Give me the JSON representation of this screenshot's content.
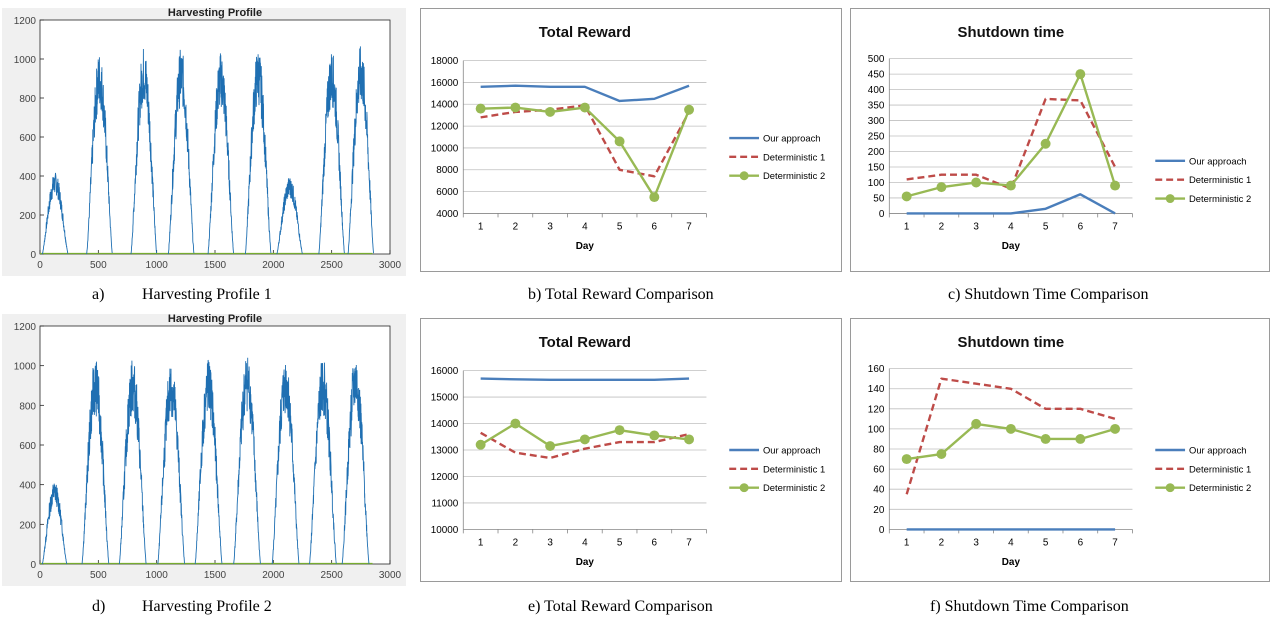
{
  "colors": {
    "harvest": "#1f6fb2",
    "ours": "#4a7ebb",
    "det1": "#be4b48",
    "det2": "#98b954",
    "grid": "#bfbfbf",
    "axis": "#868686"
  },
  "captions": {
    "a": {
      "letter": "a)",
      "text": "Harvesting Profile 1"
    },
    "b": {
      "text": "b) Total Reward Comparison"
    },
    "c": {
      "text": "c) Shutdown Time Comparison"
    },
    "d": {
      "letter": "d)",
      "text": "Harvesting Profile 2"
    },
    "e": {
      "text": "e) Total Reward Comparison"
    },
    "f": {
      "text": "f) Shutdown Time Comparison"
    }
  },
  "chart_data": [
    {
      "id": "a",
      "type": "line",
      "title": "Harvesting Profile",
      "xlim": [
        0,
        3000
      ],
      "ylim": [
        0,
        1200
      ],
      "xticks": [
        0,
        500,
        1000,
        1500,
        2000,
        2500,
        3000
      ],
      "yticks": [
        0,
        200,
        400,
        600,
        800,
        1000,
        1200
      ],
      "grid": false,
      "day_length": 150,
      "peaks": [
        {
          "start": 20,
          "end": 240,
          "peak": 420
        },
        {
          "start": 400,
          "end": 620,
          "peak": 1040
        },
        {
          "start": 780,
          "end": 1000,
          "peak": 1070
        },
        {
          "start": 1100,
          "end": 1320,
          "peak": 1060
        },
        {
          "start": 1440,
          "end": 1660,
          "peak": 1040
        },
        {
          "start": 1760,
          "end": 1980,
          "peak": 1060
        },
        {
          "start": 2030,
          "end": 2250,
          "peak": 400
        },
        {
          "start": 2390,
          "end": 2610,
          "peak": 1050
        },
        {
          "start": 2640,
          "end": 2860,
          "peak": 1070
        }
      ]
    },
    {
      "id": "b",
      "type": "line",
      "title": "Total Reward",
      "xlabel": "Day",
      "categories": [
        "1",
        "2",
        "3",
        "4",
        "5",
        "6",
        "7"
      ],
      "ylim": [
        4000,
        18000
      ],
      "yticks": [
        4000,
        6000,
        8000,
        10000,
        12000,
        14000,
        16000,
        18000
      ],
      "legend": "right",
      "series": [
        {
          "name": "Our approach",
          "style": "solid",
          "values": [
            15600,
            15700,
            15600,
            15600,
            14300,
            14500,
            15700
          ]
        },
        {
          "name": "Deterministic 1",
          "style": "dashed",
          "values": [
            12800,
            13300,
            13500,
            13900,
            8000,
            7400,
            13300
          ]
        },
        {
          "name": "Deterministic 2",
          "style": "marker",
          "values": [
            13600,
            13700,
            13300,
            13700,
            10600,
            5500,
            13500
          ]
        }
      ]
    },
    {
      "id": "c",
      "type": "line",
      "title": "Shutdown time",
      "xlabel": "Day",
      "categories": [
        "1",
        "2",
        "3",
        "4",
        "5",
        "6",
        "7"
      ],
      "ylim": [
        0,
        500
      ],
      "yticks": [
        0,
        50,
        100,
        150,
        200,
        250,
        300,
        350,
        400,
        450,
        500
      ],
      "legend": "right",
      "series": [
        {
          "name": "Our approach",
          "style": "solid",
          "values": [
            0,
            0,
            0,
            0,
            15,
            62,
            0
          ]
        },
        {
          "name": "Deterministic 1",
          "style": "dashed",
          "values": [
            110,
            125,
            125,
            80,
            370,
            365,
            150
          ]
        },
        {
          "name": "Deterministic 2",
          "style": "marker",
          "values": [
            55,
            85,
            100,
            90,
            225,
            450,
            90
          ]
        }
      ]
    },
    {
      "id": "d",
      "type": "line",
      "title": "Harvesting Profile",
      "xlim": [
        0,
        3000
      ],
      "ylim": [
        0,
        1200
      ],
      "xticks": [
        0,
        500,
        1000,
        1500,
        2000,
        2500,
        3000
      ],
      "yticks": [
        0,
        200,
        400,
        600,
        800,
        1000,
        1200
      ],
      "grid": false,
      "day_length": 150,
      "peaks": [
        {
          "start": 20,
          "end": 230,
          "peak": 420
        },
        {
          "start": 360,
          "end": 590,
          "peak": 1040
        },
        {
          "start": 680,
          "end": 910,
          "peak": 1040
        },
        {
          "start": 1010,
          "end": 1240,
          "peak": 1030
        },
        {
          "start": 1330,
          "end": 1560,
          "peak": 1040
        },
        {
          "start": 1660,
          "end": 1890,
          "peak": 1070
        },
        {
          "start": 1990,
          "end": 2220,
          "peak": 1050
        },
        {
          "start": 2310,
          "end": 2540,
          "peak": 1040
        },
        {
          "start": 2590,
          "end": 2820,
          "peak": 1060
        }
      ]
    },
    {
      "id": "e",
      "type": "line",
      "title": "Total Reward",
      "xlabel": "Day",
      "categories": [
        "1",
        "2",
        "3",
        "4",
        "5",
        "6",
        "7"
      ],
      "ylim": [
        10000,
        16000
      ],
      "yticks": [
        10000,
        11000,
        12000,
        13000,
        14000,
        15000,
        16000
      ],
      "legend": "right",
      "series": [
        {
          "name": "Our approach",
          "style": "solid",
          "values": [
            15700,
            15670,
            15650,
            15650,
            15650,
            15650,
            15700
          ]
        },
        {
          "name": "Deterministic 1",
          "style": "dashed",
          "values": [
            13650,
            12900,
            12700,
            13050,
            13300,
            13300,
            13600
          ]
        },
        {
          "name": "Deterministic 2",
          "style": "marker",
          "values": [
            13200,
            14000,
            13150,
            13400,
            13750,
            13550,
            13400
          ]
        }
      ]
    },
    {
      "id": "f",
      "type": "line",
      "title": "Shutdown time",
      "xlabel": "Day",
      "categories": [
        "1",
        "2",
        "3",
        "4",
        "5",
        "6",
        "7"
      ],
      "ylim": [
        0,
        160
      ],
      "yticks": [
        0,
        20,
        40,
        60,
        80,
        100,
        120,
        140,
        160
      ],
      "legend": "right",
      "series": [
        {
          "name": "Our approach",
          "style": "solid",
          "values": [
            0,
            0,
            0,
            0,
            0,
            0,
            0
          ]
        },
        {
          "name": "Deterministic 1",
          "style": "dashed",
          "values": [
            35,
            150,
            145,
            140,
            120,
            120,
            110
          ]
        },
        {
          "name": "Deterministic 2",
          "style": "marker",
          "values": [
            70,
            75,
            105,
            100,
            90,
            90,
            100
          ]
        }
      ]
    }
  ]
}
